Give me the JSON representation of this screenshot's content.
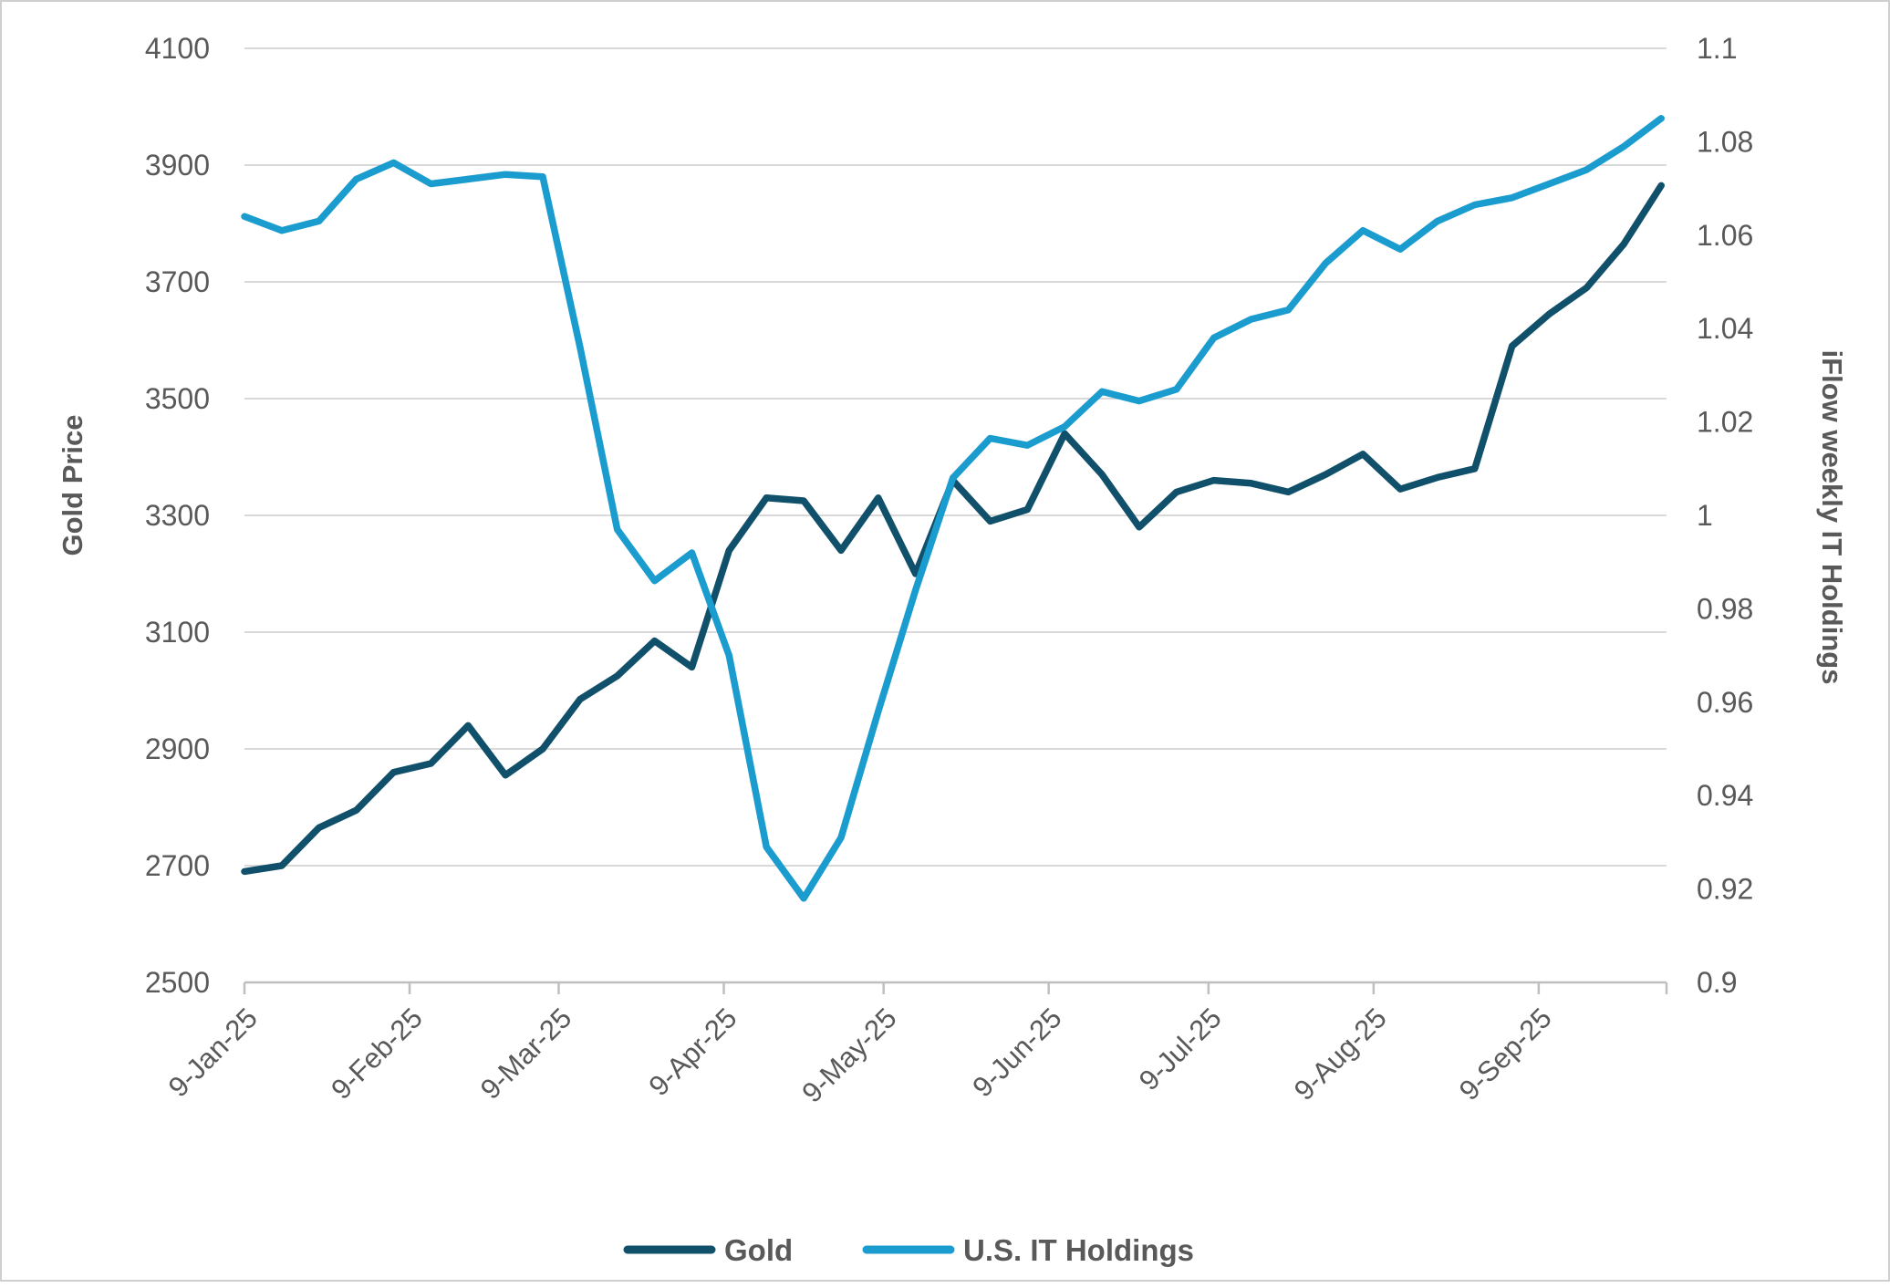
{
  "chart_data": {
    "type": "line",
    "title": "",
    "x_dates": [
      "9-Jan-25",
      "16-Jan-25",
      "23-Jan-25",
      "30-Jan-25",
      "6-Feb-25",
      "13-Feb-25",
      "20-Feb-25",
      "27-Feb-25",
      "6-Mar-25",
      "13-Mar-25",
      "20-Mar-25",
      "27-Mar-25",
      "3-Apr-25",
      "10-Apr-25",
      "17-Apr-25",
      "24-Apr-25",
      "1-May-25",
      "8-May-25",
      "15-May-25",
      "22-May-25",
      "29-May-25",
      "5-Jun-25",
      "12-Jun-25",
      "19-Jun-25",
      "26-Jun-25",
      "3-Jul-25",
      "10-Jul-25",
      "17-Jul-25",
      "24-Jul-25",
      "31-Jul-25",
      "7-Aug-25",
      "14-Aug-25",
      "21-Aug-25",
      "28-Aug-25",
      "4-Sep-25",
      "11-Sep-25",
      "18-Sep-25",
      "25-Sep-25",
      "2-Oct-25"
    ],
    "x_day_offsets": [
      0,
      7,
      14,
      21,
      28,
      35,
      42,
      49,
      56,
      63,
      70,
      77,
      84,
      91,
      98,
      105,
      112,
      119,
      126,
      133,
      140,
      147,
      154,
      161,
      168,
      175,
      182,
      189,
      196,
      203,
      210,
      217,
      224,
      231,
      238,
      245,
      252,
      259,
      266
    ],
    "series": [
      {
        "name": "Gold",
        "axis": "left",
        "color": "#11506b",
        "values": [
          2690,
          2700,
          2765,
          2795,
          2860,
          2875,
          2940,
          2855,
          2900,
          2985,
          3025,
          3085,
          3040,
          3240,
          3330,
          3325,
          3240,
          3330,
          3200,
          3360,
          3290,
          3310,
          3440,
          3370,
          3280,
          3340,
          3360,
          3355,
          3340,
          3370,
          3405,
          3345,
          3365,
          3380,
          3590,
          3645,
          3690,
          3765,
          3865
        ]
      },
      {
        "name": "U.S. IT Holdings",
        "axis": "right",
        "color": "#1b9ccf",
        "values": [
          1.064,
          1.061,
          1.063,
          1.072,
          1.0755,
          1.071,
          1.072,
          1.073,
          1.0725,
          1.036,
          0.997,
          0.986,
          0.992,
          0.97,
          0.929,
          0.918,
          0.931,
          0.958,
          0.984,
          1.008,
          1.0165,
          1.015,
          1.019,
          1.0265,
          1.0245,
          1.027,
          1.038,
          1.042,
          1.044,
          1.054,
          1.061,
          1.057,
          1.063,
          1.0665,
          1.068,
          1.071,
          1.074,
          1.079,
          1.085
        ]
      }
    ],
    "left_axis": {
      "title": "Gold Price",
      "min": 2500,
      "max": 4100,
      "step": 200,
      "tick_labels": [
        "2500",
        "2700",
        "2900",
        "3100",
        "3300",
        "3500",
        "3700",
        "3900",
        "4100"
      ]
    },
    "right_axis": {
      "title": "iFlow weekly IT Holdings",
      "min": 0.9,
      "max": 1.1,
      "step": 0.02,
      "tick_labels": [
        "0.9",
        "0.92",
        "0.94",
        "0.96",
        "0.98",
        "1",
        "1.02",
        "1.04",
        "1.06",
        "1.08",
        "1.1"
      ]
    },
    "x_axis": {
      "visible_ticks": [
        {
          "label": "9-Jan-25",
          "day": 0
        },
        {
          "label": "9-Feb-25",
          "day": 31
        },
        {
          "label": "9-Mar-25",
          "day": 59
        },
        {
          "label": "9-Apr-25",
          "day": 90
        },
        {
          "label": "9-May-25",
          "day": 120
        },
        {
          "label": "9-Jun-25",
          "day": 151
        },
        {
          "label": "9-Jul-25",
          "day": 181
        },
        {
          "label": "9-Aug-25",
          "day": 212
        },
        {
          "label": "9-Sep-25",
          "day": 243
        }
      ],
      "end_day": 267
    },
    "legend": [
      {
        "label": "Gold",
        "color": "#11506b"
      },
      {
        "label": "U.S. IT Holdings",
        "color": "#1b9ccf"
      }
    ],
    "grid": true,
    "colors": {
      "gridline": "#d9d9d9",
      "axis_line": "#bfbfbf",
      "label_text": "#595959",
      "background": "#ffffff"
    }
  }
}
